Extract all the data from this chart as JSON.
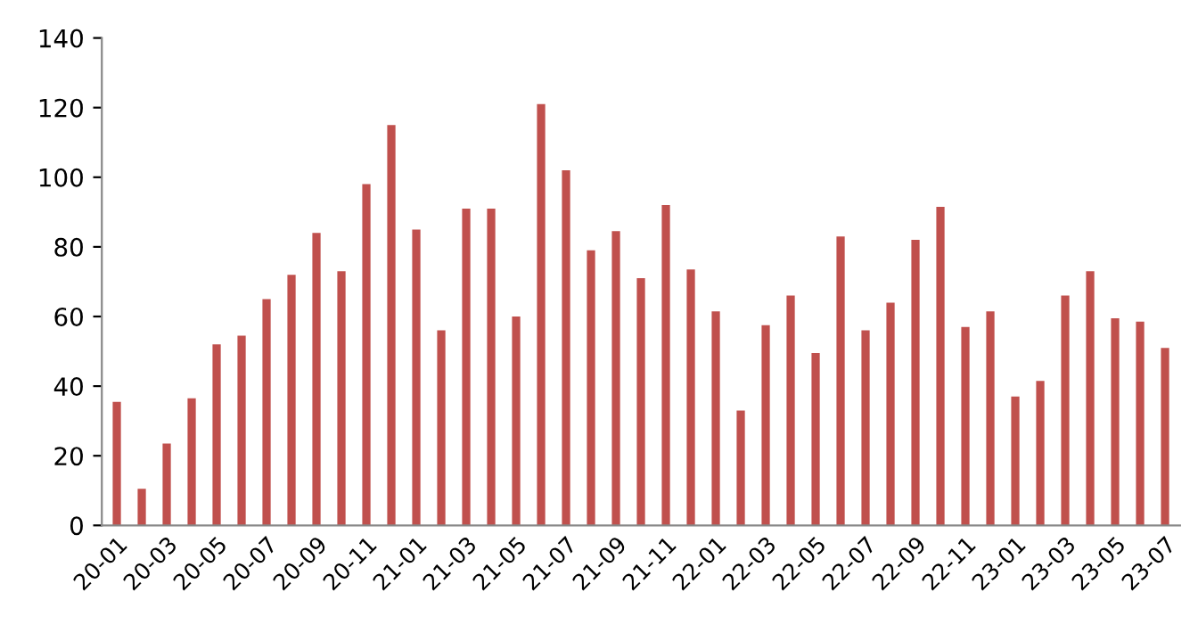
{
  "chart_data": {
    "type": "bar",
    "categories": [
      "20-01",
      null,
      "20-03",
      null,
      "20-05",
      null,
      "20-07",
      null,
      "20-09",
      null,
      "20-11",
      null,
      "21-01",
      null,
      "21-03",
      null,
      "21-05",
      null,
      "21-07",
      null,
      "21-09",
      null,
      "21-11",
      null,
      "22-01",
      null,
      "22-03",
      null,
      "22-05",
      null,
      "22-07",
      null,
      "22-09",
      null,
      "22-11",
      null,
      "23-01",
      null,
      "23-03",
      null,
      "23-05",
      null,
      "23-07"
    ],
    "values": [
      35.5,
      10.5,
      23.5,
      36.5,
      52,
      54.5,
      65,
      72,
      84,
      73,
      98,
      115,
      85,
      56,
      91,
      91,
      60,
      121,
      102,
      79,
      84.5,
      71,
      92,
      73.5,
      61.5,
      33,
      57.5,
      66,
      49.5,
      83,
      56,
      64,
      82,
      91.5,
      57,
      61.5,
      37,
      41.5,
      66,
      73,
      59.5,
      58.5,
      51
    ],
    "color": "#c0504d",
    "ylim": [
      0,
      140
    ],
    "yticks": [
      0,
      20,
      40,
      60,
      80,
      100,
      120,
      140
    ],
    "grid": false,
    "legend": false
  }
}
